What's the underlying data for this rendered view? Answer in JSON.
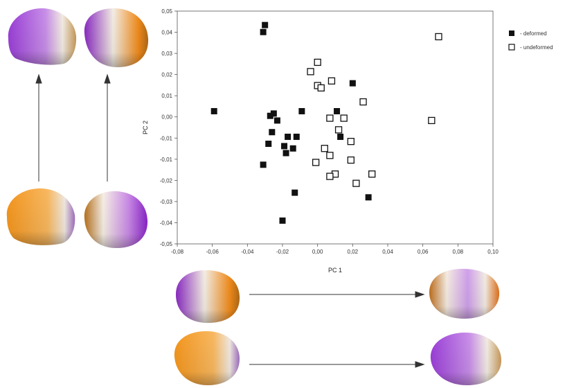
{
  "colors": {
    "purple": "#8b2fc9",
    "orange": "#f08a1a",
    "white": "#f4f0ea",
    "marker": "#111111"
  },
  "shape_panels": [
    {
      "id": "top-left-skull",
      "gradient": "purple-left"
    },
    {
      "id": "top-right-skull",
      "gradient": "purple-orange"
    },
    {
      "id": "mid-left-skull",
      "gradient": "orange-left"
    },
    {
      "id": "mid-right-skull",
      "gradient": "orange-purple"
    },
    {
      "id": "bottom-row1-left-skull",
      "gradient": "purple-orange"
    },
    {
      "id": "bottom-row1-right-skull",
      "gradient": "purple-white-orange"
    },
    {
      "id": "bottom-row2-left-skull",
      "gradient": "orange-left"
    },
    {
      "id": "bottom-row2-right-skull",
      "gradient": "purple-left"
    }
  ],
  "chart_data": {
    "type": "scatter",
    "xlabel": "PC 1",
    "ylabel": "PC 2",
    "xlim": [
      -0.08,
      0.1
    ],
    "ylim": [
      -0.05,
      0.05
    ],
    "x_ticks": [
      "-0,08",
      "-0,06",
      "-0,04",
      "-0,02",
      "0,00",
      "0,02",
      "0,04",
      "0,06",
      "0,08",
      "0,10"
    ],
    "y_ticks": [
      "0,05",
      "0,04",
      "0,03",
      "0,02",
      "0,01",
      "0,00",
      "-0,01",
      "-0,01",
      "-0,02",
      "-0,03",
      "-0,04",
      "-0,05"
    ],
    "grid": false,
    "legend_position": "top-right",
    "series": [
      {
        "name": "- deformed",
        "marker": "filled-square",
        "points": [
          [
            -0.03,
            0.044
          ],
          [
            -0.031,
            0.041
          ],
          [
            -0.059,
            0.007
          ],
          [
            -0.025,
            0.006
          ],
          [
            -0.027,
            0.005
          ],
          [
            -0.009,
            0.007
          ],
          [
            -0.023,
            0.003
          ],
          [
            -0.026,
            -0.002
          ],
          [
            -0.017,
            -0.004
          ],
          [
            -0.012,
            -0.004
          ],
          [
            -0.028,
            -0.007
          ],
          [
            -0.019,
            -0.008
          ],
          [
            -0.014,
            -0.009
          ],
          [
            -0.018,
            -0.011
          ],
          [
            -0.031,
            -0.016
          ],
          [
            -0.013,
            -0.028
          ],
          [
            -0.02,
            -0.04
          ],
          [
            0.02,
            0.019
          ],
          [
            0.011,
            0.007
          ],
          [
            0.013,
            -0.004
          ],
          [
            0.029,
            -0.03
          ]
        ]
      },
      {
        "name": "- undeformed",
        "marker": "open-square",
        "points": [
          [
            0.069,
            0.039
          ],
          [
            0.0,
            0.028
          ],
          [
            -0.004,
            0.024
          ],
          [
            0.008,
            0.02
          ],
          [
            0.0,
            0.018
          ],
          [
            0.002,
            0.017
          ],
          [
            0.026,
            0.011
          ],
          [
            0.007,
            0.004
          ],
          [
            0.015,
            0.004
          ],
          [
            0.012,
            -0.001
          ],
          [
            0.065,
            0.003
          ],
          [
            0.019,
            -0.006
          ],
          [
            0.004,
            -0.009
          ],
          [
            0.007,
            -0.012
          ],
          [
            -0.001,
            -0.015
          ],
          [
            0.019,
            -0.014
          ],
          [
            0.01,
            -0.02
          ],
          [
            0.007,
            -0.021
          ],
          [
            0.031,
            -0.02
          ],
          [
            0.022,
            -0.024
          ]
        ]
      }
    ]
  }
}
